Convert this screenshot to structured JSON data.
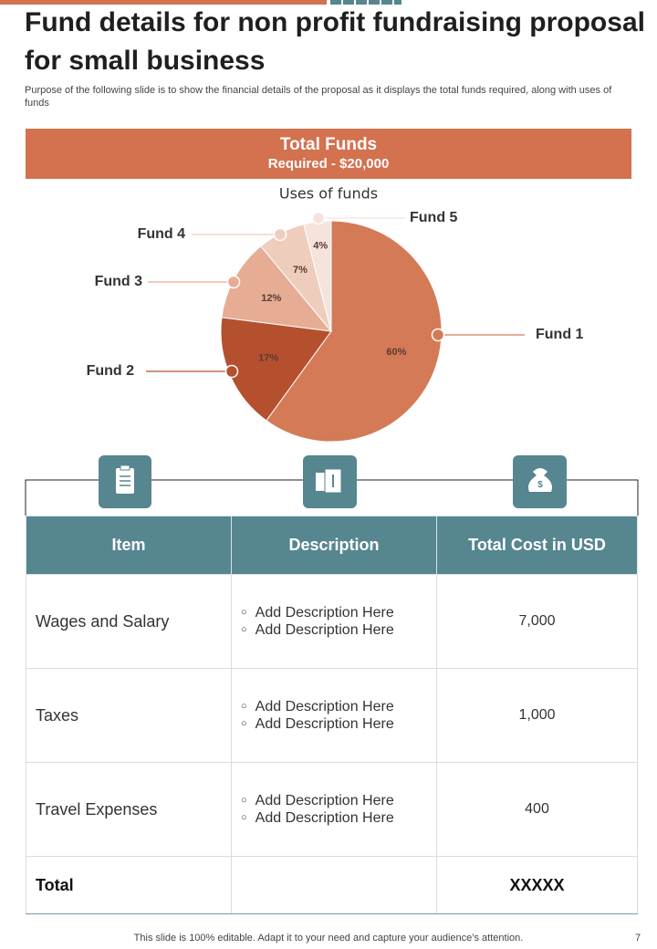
{
  "header": {
    "title": "Fund details for non profit fundraising proposal for small business",
    "subtitle": "Purpose of the following slide is to show the financial details of the proposal as it displays the total funds required, along with uses of funds"
  },
  "banner": {
    "title": "Total Funds",
    "subtitle": "Required - $20,000"
  },
  "chart_data": {
    "type": "pie",
    "title": "Uses of funds",
    "categories": [
      "Fund 1",
      "Fund 2",
      "Fund 3",
      "Fund 4",
      "Fund 5"
    ],
    "values": [
      60,
      17,
      12,
      7,
      4
    ],
    "value_labels": [
      "60%",
      "17%",
      "12%",
      "7%",
      "4%"
    ],
    "colors": [
      "#d47a56",
      "#b5502e",
      "#e6ad94",
      "#efcdbd",
      "#f6e3db"
    ]
  },
  "table": {
    "columns": [
      "Item",
      "Description",
      "Total Cost in USD"
    ],
    "rows": [
      {
        "item": "Wages and Salary",
        "description": [
          "Add Description Here",
          "Add Description Here"
        ],
        "cost": "7,000"
      },
      {
        "item": "Taxes",
        "description": [
          "Add Description Here",
          "Add Description Here"
        ],
        "cost": "1,000"
      },
      {
        "item": "Travel Expenses",
        "description": [
          "Add Description Here",
          "Add Description Here"
        ],
        "cost": "400"
      }
    ],
    "total": {
      "item": "Total",
      "cost": "XXXXX"
    }
  },
  "footer": {
    "note": "This slide is 100% editable. Adapt it to your need and capture your audience’s attention.",
    "page": "7"
  }
}
